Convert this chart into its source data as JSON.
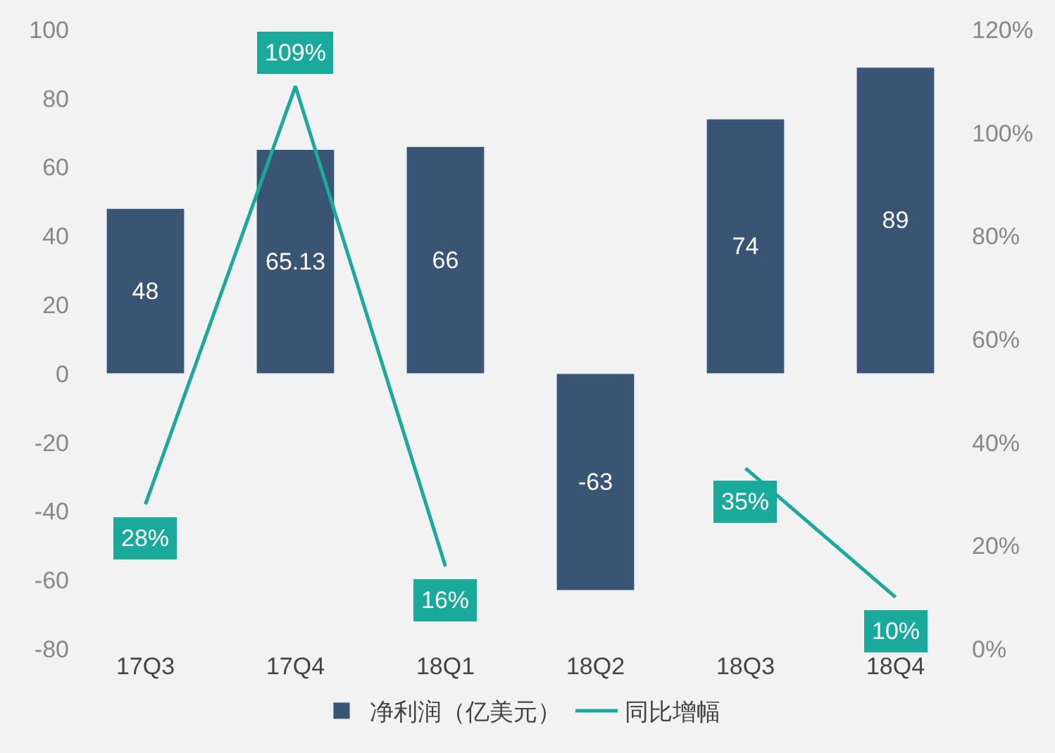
{
  "chart_data": {
    "type": "bar",
    "categories": [
      "17Q3",
      "17Q4",
      "18Q1",
      "18Q2",
      "18Q3",
      "18Q4"
    ],
    "series": [
      {
        "name": "净利润（亿美元）",
        "color": "#3a5574",
        "values": [
          48,
          65.13,
          66,
          -63,
          74,
          89
        ],
        "value_labels": [
          "48",
          "65.13",
          "66",
          "-63",
          "74",
          "89"
        ]
      },
      {
        "name": "同比增幅",
        "type": "line",
        "axis": "y2",
        "color": "#1aaa9b",
        "values": [
          28,
          109,
          16,
          null,
          35,
          10
        ],
        "value_labels": [
          "28%",
          "109%",
          "16%",
          null,
          "35%",
          "10%"
        ]
      }
    ],
    "ylim": [
      -80,
      100
    ],
    "yticks": [
      -80,
      -60,
      -40,
      -20,
      0,
      20,
      40,
      60,
      80,
      100
    ],
    "y2lim": [
      0,
      120
    ],
    "y2ticks": [
      {
        "value": 0,
        "label": "0%"
      },
      {
        "value": 20,
        "label": "20%"
      },
      {
        "value": 40,
        "label": "40%"
      },
      {
        "value": 60,
        "label": "60%"
      },
      {
        "value": 80,
        "label": "80%"
      },
      {
        "value": 100,
        "label": "100%"
      },
      {
        "value": 120,
        "label": "120%"
      }
    ],
    "legend": "bottom",
    "grid": false,
    "line_style": "solid",
    "marker": "none"
  }
}
